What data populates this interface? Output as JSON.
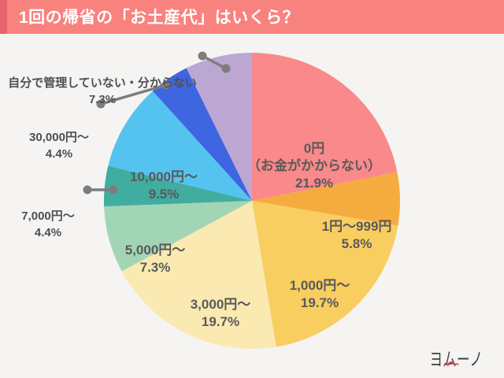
{
  "header": {
    "title": "1回の帰省の「お土産代」はいくら？",
    "bar_color": "#F8827E",
    "accent_color": "#E9636E",
    "title_color": "#FFFFFF"
  },
  "logo": {
    "text": "ヨムーノ",
    "text_color": "#3F4145",
    "mark_color": "#DD4B4E"
  },
  "colors": {
    "background": "#F5F4F2",
    "inside_label_text": "#595959",
    "outside_label_text": "#4F4F4F",
    "leader_line": "#7D7D7D"
  },
  "chart_data": {
    "type": "pie",
    "title": "1回の帰省の「お土産代」はいくら？",
    "start_angle_deg": 0,
    "direction": "clockwise",
    "unit": "%",
    "slices": [
      {
        "label": "0円",
        "label2": "（お金がかからない）",
        "value": 21.9,
        "pct": "21.9%",
        "color": "#F9898B",
        "label_placement": "inside"
      },
      {
        "label": "1円〜999円",
        "value": 5.8,
        "pct": "5.8%",
        "color": "#F5AC3F",
        "label_placement": "inside"
      },
      {
        "label": "1,000円〜",
        "value": 19.7,
        "pct": "19.7%",
        "color": "#F9CE60",
        "label_placement": "inside"
      },
      {
        "label": "3,000円〜",
        "value": 19.7,
        "pct": "19.7%",
        "color": "#FAE9B1",
        "label_placement": "inside"
      },
      {
        "label": "5,000円〜",
        "value": 7.3,
        "pct": "7.3%",
        "color": "#A2D5B5",
        "label_placement": "inside"
      },
      {
        "label": "7,000円〜",
        "value": 4.4,
        "pct": "4.4%",
        "color": "#40ADA0",
        "label_placement": "outside-left"
      },
      {
        "label": "10,000円〜",
        "value": 9.5,
        "pct": "9.5%",
        "color": "#54C3F0",
        "label_placement": "inside"
      },
      {
        "label": "30,000円〜",
        "value": 4.4,
        "pct": "4.4%",
        "color": "#3E66E0",
        "label_placement": "outside-left"
      },
      {
        "label": "自分で管理していない・分からない",
        "value": 7.3,
        "pct": "7.3%",
        "color": "#BCA7D3",
        "label_placement": "outside-top"
      }
    ]
  }
}
